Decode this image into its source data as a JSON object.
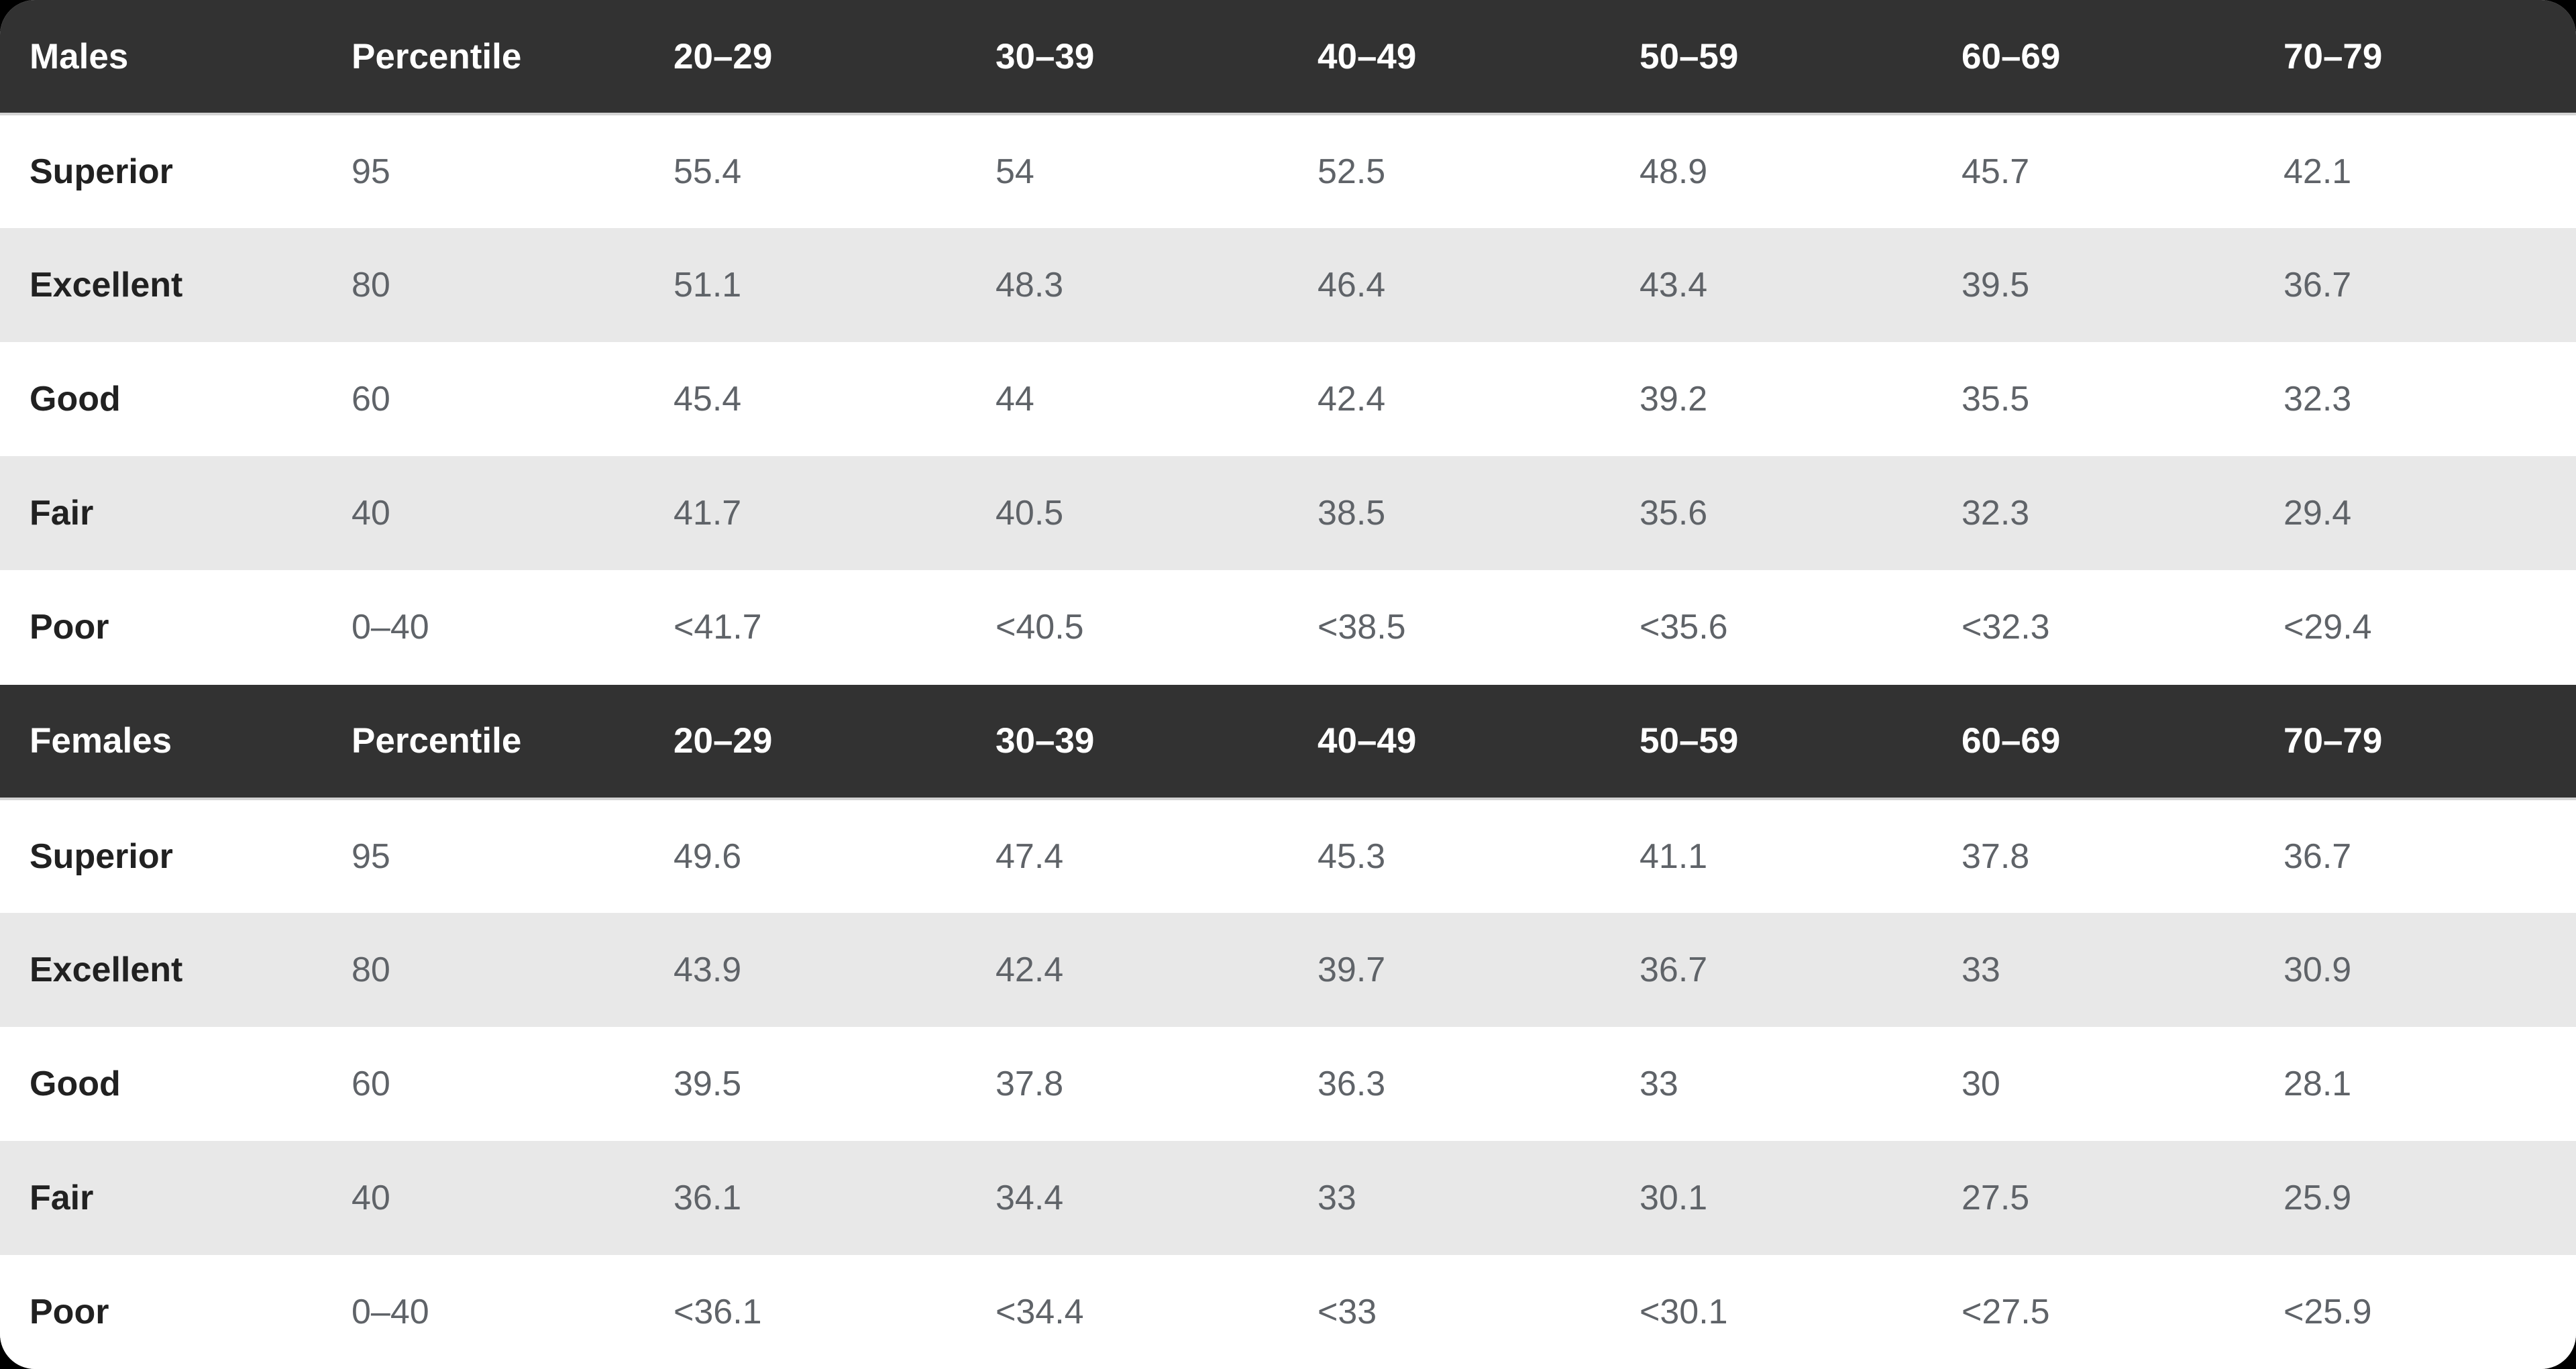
{
  "colors": {
    "page_background": "#000000",
    "header_background": "#323232",
    "header_text": "#ffffff",
    "stripe_row_background": "#e8e8e8",
    "plain_row_background": "#ffffff",
    "row_label_text": "#212121",
    "value_text": "#5f6368"
  },
  "chart_data": [
    {
      "type": "table",
      "title": "Males",
      "columns": [
        "Males",
        "Percentile",
        "20–29",
        "30–39",
        "40–49",
        "50–59",
        "60–69",
        "70–79"
      ],
      "rows": [
        {
          "label": "Superior",
          "values": [
            "95",
            "55.4",
            "54",
            "52.5",
            "48.9",
            "45.7",
            "42.1"
          ]
        },
        {
          "label": "Excellent",
          "values": [
            "80",
            "51.1",
            "48.3",
            "46.4",
            "43.4",
            "39.5",
            "36.7"
          ]
        },
        {
          "label": "Good",
          "values": [
            "60",
            "45.4",
            "44",
            "42.4",
            "39.2",
            "35.5",
            "32.3"
          ]
        },
        {
          "label": "Fair",
          "values": [
            "40",
            "41.7",
            "40.5",
            "38.5",
            "35.6",
            "32.3",
            "29.4"
          ]
        },
        {
          "label": "Poor",
          "values": [
            "0–40",
            "<41.7",
            "<40.5",
            "<38.5",
            "<35.6",
            "<32.3",
            "<29.4"
          ]
        }
      ]
    },
    {
      "type": "table",
      "title": "Females",
      "columns": [
        "Females",
        "Percentile",
        "20–29",
        "30–39",
        "40–49",
        "50–59",
        "60–69",
        "70–79"
      ],
      "rows": [
        {
          "label": "Superior",
          "values": [
            "95",
            "49.6",
            "47.4",
            "45.3",
            "41.1",
            "37.8",
            "36.7"
          ]
        },
        {
          "label": "Excellent",
          "values": [
            "80",
            "43.9",
            "42.4",
            "39.7",
            "36.7",
            "33",
            "30.9"
          ]
        },
        {
          "label": "Good",
          "values": [
            "60",
            "39.5",
            "37.8",
            "36.3",
            "33",
            "30",
            "28.1"
          ]
        },
        {
          "label": "Fair",
          "values": [
            "40",
            "36.1",
            "34.4",
            "33",
            "30.1",
            "27.5",
            "25.9"
          ]
        },
        {
          "label": "Poor",
          "values": [
            "0–40",
            "<36.1",
            "<34.4",
            "<33",
            "<30.1",
            "<27.5",
            "<25.9"
          ]
        }
      ]
    }
  ]
}
